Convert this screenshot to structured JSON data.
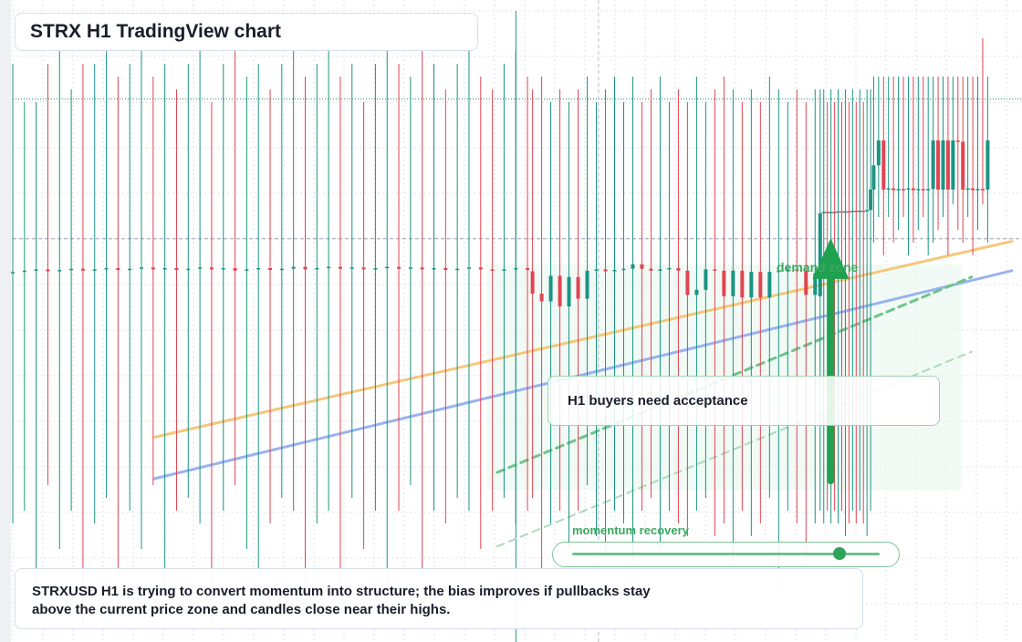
{
  "title": "STRX H1 TradingView chart",
  "callout": {
    "text": "H1 buyers need acceptance"
  },
  "zone_label": "demand zone",
  "momentum": {
    "label": "momentum recovery",
    "level": 0.87
  },
  "summary": {
    "text": "STRXUSD H1 is trying to convert momentum into structure; the bias improves if pullbacks stay above the current price zone and candles close near their highs."
  },
  "colors": {
    "up": "#1b9483",
    "down": "#e14552",
    "grid": "#dfe3ea",
    "trend_orange": "#f5c77a",
    "trend_blue": "#98b3f0",
    "accent_green": "#1fa14f"
  },
  "chart_data": {
    "type": "candlestick",
    "symbol": "STRXUSD",
    "timeframe": "H1",
    "title": "",
    "xlabel": "",
    "ylabel": "",
    "grid": true,
    "y_range": [
      0,
      100
    ],
    "reference_levels": {
      "resistance": 84.5,
      "current": 62.6
    },
    "candles_baseline": [
      {
        "o": 57.2,
        "c": 57.4,
        "h": 90,
        "l": 18
      },
      {
        "o": 57.4,
        "c": 57.6,
        "h": 84,
        "l": 20
      },
      {
        "o": 57.6,
        "c": 57.8,
        "h": 84,
        "l": 6
      },
      {
        "o": 57.8,
        "c": 57.5,
        "h": 90,
        "l": 24
      },
      {
        "o": 57.5,
        "c": 57.7,
        "h": 92,
        "l": 14
      },
      {
        "o": 57.7,
        "c": 57.9,
        "h": 86,
        "l": 20
      },
      {
        "o": 57.9,
        "c": 57.6,
        "h": 90,
        "l": 2
      },
      {
        "o": 57.6,
        "c": 57.8,
        "h": 90,
        "l": 18
      },
      {
        "o": 57.8,
        "c": 58.0,
        "h": 92,
        "l": 22
      },
      {
        "o": 58.0,
        "c": 57.7,
        "h": 88,
        "l": 10
      },
      {
        "o": 57.7,
        "c": 57.9,
        "h": 90,
        "l": 20
      },
      {
        "o": 57.9,
        "c": 58.1,
        "h": 92,
        "l": 14
      },
      {
        "o": 58.1,
        "c": 57.8,
        "h": 88,
        "l": 24
      },
      {
        "o": 57.8,
        "c": 58.0,
        "h": 90,
        "l": 8
      },
      {
        "o": 58.0,
        "c": 57.7,
        "h": 86,
        "l": 20
      },
      {
        "o": 57.7,
        "c": 57.9,
        "h": 90,
        "l": 22
      },
      {
        "o": 57.9,
        "c": 58.1,
        "h": 92,
        "l": 18
      },
      {
        "o": 58.1,
        "c": 57.8,
        "h": 84,
        "l": 2
      },
      {
        "o": 57.8,
        "c": 58.0,
        "h": 90,
        "l": 20
      },
      {
        "o": 58.0,
        "c": 57.6,
        "h": 92,
        "l": 24
      },
      {
        "o": 57.6,
        "c": 57.8,
        "h": 88,
        "l": 14
      },
      {
        "o": 57.8,
        "c": 58.0,
        "h": 90,
        "l": 10
      },
      {
        "o": 58.0,
        "c": 57.7,
        "h": 86,
        "l": 18
      },
      {
        "o": 57.7,
        "c": 57.9,
        "h": 90,
        "l": 22
      },
      {
        "o": 57.9,
        "c": 58.2,
        "h": 92,
        "l": 20
      },
      {
        "o": 58.2,
        "c": 57.8,
        "h": 88,
        "l": 8
      },
      {
        "o": 57.8,
        "c": 58.0,
        "h": 90,
        "l": 18
      },
      {
        "o": 58.0,
        "c": 58.2,
        "h": 92,
        "l": 20
      },
      {
        "o": 58.2,
        "c": 57.9,
        "h": 88,
        "l": 6
      },
      {
        "o": 57.9,
        "c": 58.1,
        "h": 90,
        "l": 22
      },
      {
        "o": 58.1,
        "c": 57.8,
        "h": 84,
        "l": 14
      },
      {
        "o": 57.8,
        "c": 58.0,
        "h": 90,
        "l": 20
      },
      {
        "o": 58.0,
        "c": 58.2,
        "h": 92,
        "l": 4
      },
      {
        "o": 58.2,
        "c": 57.9,
        "h": 90,
        "l": 20
      },
      {
        "o": 57.9,
        "c": 58.1,
        "h": 88,
        "l": 24
      },
      {
        "o": 58.1,
        "c": 57.8,
        "h": 92,
        "l": 10
      },
      {
        "o": 57.8,
        "c": 58.0,
        "h": 90,
        "l": 20
      },
      {
        "o": 58.0,
        "c": 57.7,
        "h": 86,
        "l": 18
      },
      {
        "o": 57.7,
        "c": 57.9,
        "h": 90,
        "l": 22
      },
      {
        "o": 57.9,
        "c": 58.1,
        "h": 92,
        "l": 20
      },
      {
        "o": 58.1,
        "c": 57.8,
        "h": 88,
        "l": 14
      },
      {
        "o": 57.8,
        "c": 57.6,
        "h": 86,
        "l": 20
      },
      {
        "o": 57.6,
        "c": 57.8,
        "h": 90,
        "l": 22
      },
      {
        "o": 57.8,
        "c": 58.0,
        "h": 92,
        "l": 18
      },
      {
        "o": 58.0,
        "c": 57.7,
        "h": 88,
        "l": 20
      }
    ],
    "candles_breakdown": [
      {
        "o": 57.5,
        "c": 54.0,
        "h": 86,
        "l": 22
      },
      {
        "o": 54.0,
        "c": 52.8,
        "h": 88,
        "l": 10
      },
      {
        "o": 52.8,
        "c": 56.8,
        "h": 84,
        "l": 18
      },
      {
        "o": 56.8,
        "c": 52.0,
        "h": 86,
        "l": 20
      },
      {
        "o": 52.0,
        "c": 56.6,
        "h": 84,
        "l": 14
      },
      {
        "o": 56.6,
        "c": 53.2,
        "h": 86,
        "l": 20
      },
      {
        "o": 53.2,
        "c": 57.6,
        "h": 88,
        "l": 24
      },
      {
        "o": 57.6,
        "c": 57.8,
        "h": 84,
        "l": 16
      },
      {
        "o": 57.8,
        "c": 57.5,
        "h": 86,
        "l": 14
      },
      {
        "o": 57.5,
        "c": 57.7,
        "h": 88,
        "l": 20
      },
      {
        "o": 57.7,
        "c": 57.9,
        "h": 84,
        "l": 18
      },
      {
        "o": 57.9,
        "c": 58.6,
        "h": 88,
        "l": 12
      },
      {
        "o": 58.6,
        "c": 57.9,
        "h": 84,
        "l": 20
      },
      {
        "o": 57.9,
        "c": 57.6,
        "h": 86,
        "l": 22
      },
      {
        "o": 57.6,
        "c": 57.8,
        "h": 88,
        "l": 14
      },
      {
        "o": 57.8,
        "c": 58.0,
        "h": 84,
        "l": 20
      },
      {
        "o": 58.0,
        "c": 57.6,
        "h": 86,
        "l": 18
      },
      {
        "o": 57.6,
        "c": 53.8,
        "h": 84,
        "l": 16
      },
      {
        "o": 53.8,
        "c": 54.6,
        "h": 88,
        "l": 20
      },
      {
        "o": 54.6,
        "c": 57.8,
        "h": 84,
        "l": 22
      },
      {
        "o": 57.8,
        "c": 57.6,
        "h": 86,
        "l": 16
      },
      {
        "o": 57.6,
        "c": 53.6,
        "h": 88,
        "l": 18
      },
      {
        "o": 53.6,
        "c": 57.6,
        "h": 86,
        "l": 12
      },
      {
        "o": 57.6,
        "c": 53.4,
        "h": 84,
        "l": 20
      },
      {
        "o": 53.4,
        "c": 57.4,
        "h": 86,
        "l": 16
      },
      {
        "o": 57.4,
        "c": 53.4,
        "h": 84,
        "l": 18
      },
      {
        "o": 53.4,
        "c": 57.4,
        "h": 88,
        "l": 22
      },
      {
        "o": 57.4,
        "c": 57.6,
        "h": 86,
        "l": 8
      },
      {
        "o": 57.6,
        "c": 57.8,
        "h": 84,
        "l": 20
      },
      {
        "o": 57.8,
        "c": 57.6,
        "h": 86,
        "l": 18
      },
      {
        "o": 57.6,
        "c": 53.8,
        "h": 84,
        "l": 12
      },
      {
        "o": 53.8,
        "c": 57.2,
        "h": 86,
        "l": 18
      }
    ],
    "candles_rally": [
      {
        "o": 53.6,
        "c": 66.6,
        "h": 86,
        "l": 20
      },
      {
        "o": 66.6,
        "c": 66.8,
        "h": 86,
        "l": 18
      },
      {
        "o": 66.8,
        "c": 66.6,
        "h": 84,
        "l": 20
      },
      {
        "o": 66.6,
        "c": 66.8,
        "h": 86,
        "l": 18
      },
      {
        "o": 66.8,
        "c": 66.7,
        "h": 84,
        "l": 20
      },
      {
        "o": 66.7,
        "c": 66.9,
        "h": 86,
        "l": 18
      },
      {
        "o": 66.9,
        "c": 66.7,
        "h": 84,
        "l": 20
      },
      {
        "o": 66.7,
        "c": 66.9,
        "h": 86,
        "l": 16
      },
      {
        "o": 66.9,
        "c": 66.8,
        "h": 84,
        "l": 18
      },
      {
        "o": 66.8,
        "c": 67.0,
        "h": 86,
        "l": 20
      },
      {
        "o": 67.0,
        "c": 66.8,
        "h": 84,
        "l": 18
      },
      {
        "o": 66.8,
        "c": 67.0,
        "h": 86,
        "l": 20
      },
      {
        "o": 67.0,
        "c": 66.9,
        "h": 84,
        "l": 18
      },
      {
        "o": 66.9,
        "c": 67.1,
        "h": 86,
        "l": 16
      },
      {
        "o": 67.1,
        "c": 70.3,
        "h": 86,
        "l": 20
      }
    ],
    "candles_plateau": [
      {
        "o": 70.3,
        "c": 74.1,
        "h": 88,
        "l": 62
      },
      {
        "o": 74.1,
        "c": 78.0,
        "h": 88,
        "l": 66
      },
      {
        "o": 78.0,
        "c": 70.3,
        "h": 88,
        "l": 60
      },
      {
        "o": 70.3,
        "c": 70.5,
        "h": 88,
        "l": 66
      },
      {
        "o": 70.5,
        "c": 70.2,
        "h": 88,
        "l": 62
      },
      {
        "o": 70.2,
        "c": 70.4,
        "h": 88,
        "l": 64
      },
      {
        "o": 70.4,
        "c": 70.3,
        "h": 88,
        "l": 66
      },
      {
        "o": 70.3,
        "c": 70.5,
        "h": 88,
        "l": 60
      },
      {
        "o": 70.5,
        "c": 70.2,
        "h": 88,
        "l": 62
      },
      {
        "o": 70.2,
        "c": 70.4,
        "h": 88,
        "l": 64
      },
      {
        "o": 70.4,
        "c": 70.2,
        "h": 88,
        "l": 66
      },
      {
        "o": 70.2,
        "c": 70.4,
        "h": 88,
        "l": 60
      },
      {
        "o": 70.4,
        "c": 78.0,
        "h": 88,
        "l": 62
      },
      {
        "o": 78.0,
        "c": 70.3,
        "h": 88,
        "l": 64
      },
      {
        "o": 70.3,
        "c": 78.0,
        "h": 88,
        "l": 66
      },
      {
        "o": 78.0,
        "c": 70.3,
        "h": 88,
        "l": 60
      },
      {
        "o": 70.3,
        "c": 78.0,
        "h": 88,
        "l": 68
      },
      {
        "o": 78.0,
        "c": 77.8,
        "h": 88,
        "l": 64
      },
      {
        "o": 77.8,
        "c": 70.3,
        "h": 88,
        "l": 62
      },
      {
        "o": 70.3,
        "c": 70.5,
        "h": 88,
        "l": 66
      },
      {
        "o": 70.5,
        "c": 70.2,
        "h": 88,
        "l": 60
      },
      {
        "o": 70.2,
        "c": 70.4,
        "h": 88,
        "l": 64
      },
      {
        "o": 70.4,
        "c": 70.3,
        "h": 94,
        "l": 68
      },
      {
        "o": 70.3,
        "c": 78.0,
        "h": 88,
        "l": 62
      }
    ],
    "trendlines": [
      {
        "name": "",
        "from": [
          0.14,
          31.5
        ],
        "to": [
          0.99,
          62.2
        ],
        "color": "#f5c77a",
        "style": "solid"
      },
      {
        "name": "",
        "from": [
          0.14,
          25.0
        ],
        "to": [
          0.99,
          57.6
        ],
        "color": "#98b3f0",
        "style": "solid"
      },
      {
        "name": "",
        "from": [
          0.48,
          26.0
        ],
        "to": [
          0.95,
          56.6
        ],
        "color": "#6cc58c",
        "style": "dashed"
      },
      {
        "name": "",
        "from": [
          0.48,
          14.4
        ],
        "to": [
          0.95,
          44.9
        ],
        "color": "#a9dcba",
        "style": "dashed"
      }
    ]
  }
}
